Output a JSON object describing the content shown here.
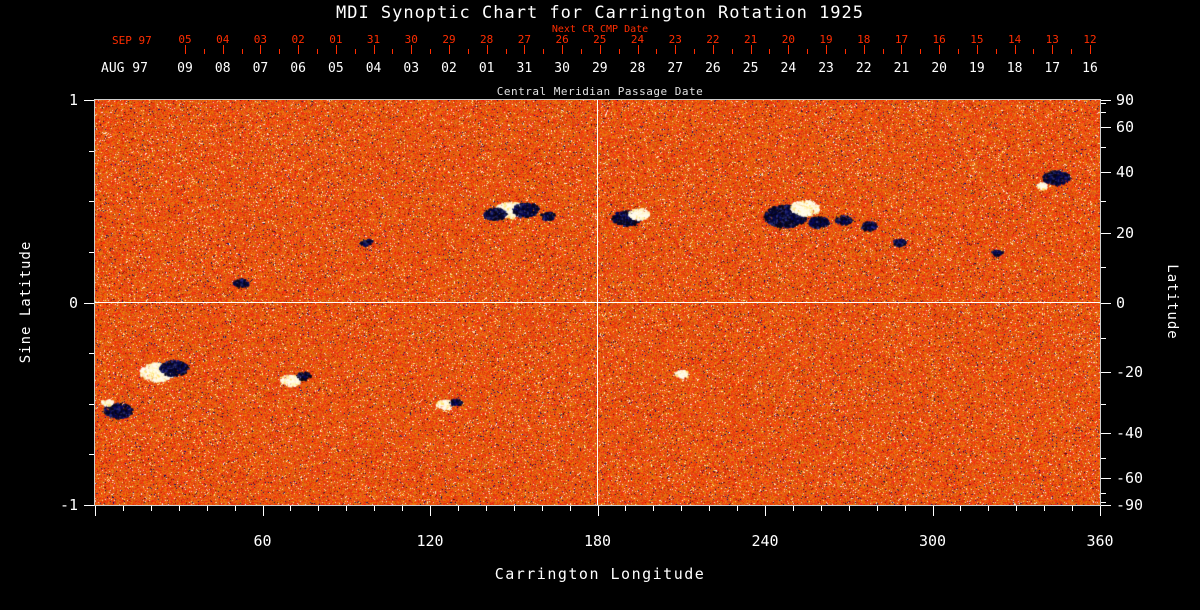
{
  "title": "MDI Synoptic Chart for Carrington Rotation 1925",
  "colors": {
    "background": "#000000",
    "title_text": "#ffffff",
    "red_accent": "#ff2d00",
    "white_axis": "#ffffff",
    "caption_text": "#e2e2e2",
    "map_base": "#e8521e",
    "negative_polarity": "#001a55",
    "positive_polarity": "#fff8e0"
  },
  "top_axis": {
    "next_cr_label": "Next CR CMP Date",
    "cmp_label": "Central Meridian Passage Date",
    "red_row": {
      "month_label": "SEP 97",
      "days": [
        "05",
        "04",
        "03",
        "02",
        "01",
        "31",
        "30",
        "29",
        "28",
        "27",
        "26",
        "25",
        "24",
        "23",
        "22",
        "21",
        "20",
        "19",
        "18",
        "17",
        "16",
        "15",
        "14",
        "13",
        "12"
      ]
    },
    "white_row": {
      "month_label": "AUG 97",
      "days": [
        "09",
        "08",
        "07",
        "06",
        "05",
        "04",
        "03",
        "02",
        "01",
        "31",
        "30",
        "29",
        "28",
        "27",
        "26",
        "25",
        "24",
        "23",
        "22",
        "21",
        "20",
        "19",
        "18",
        "17",
        "16"
      ]
    }
  },
  "left_axis": {
    "label": "Sine Latitude",
    "tick_labels": [
      "1",
      "0",
      "-1"
    ],
    "tick_values": [
      1,
      0,
      -1
    ],
    "minor_tick_values": [
      0.75,
      0.5,
      0.25,
      -0.25,
      -0.5,
      -0.75
    ]
  },
  "right_axis": {
    "label": "Latitude",
    "tick_labels": [
      "90",
      "60",
      "40",
      "20",
      "0",
      "-20",
      "-40",
      "-60",
      "-90"
    ],
    "tick_values": [
      90,
      60,
      40,
      20,
      0,
      -20,
      -40,
      -60,
      -90
    ],
    "minor_tick_values": [
      80,
      70,
      50,
      30,
      10,
      -10,
      -30,
      -50,
      -70,
      -80
    ]
  },
  "bottom_axis": {
    "label": "Carrington Longitude",
    "tick_labels": [
      "60",
      "120",
      "180",
      "240",
      "300",
      "360"
    ],
    "tick_values": [
      60,
      120,
      180,
      240,
      300,
      360
    ],
    "minor_step_deg": 10
  },
  "chart_data": {
    "type": "heatmap",
    "title": "MDI Synoptic Chart for Carrington Rotation 1925",
    "xlabel": "Carrington Longitude",
    "ylabel_left": "Sine Latitude",
    "ylabel_right": "Latitude",
    "xlim": [
      0,
      360
    ],
    "ylim_sine_latitude": [
      -1,
      1
    ],
    "grid": false,
    "reference_lines": {
      "horizontal_at_sine_latitude": 0,
      "vertical_at_longitude": 180
    },
    "description": "SOHO/MDI magnetic flux synoptic map: granular orange-red quiet-sun background with bipolar active regions (dark blue/black = negative polarity, white/yellow = positive polarity).",
    "active_regions": [
      {
        "lon": 148.5,
        "sin_lat": 0.46,
        "pol": "pos",
        "r_deg": 3.2
      },
      {
        "lon": 143.0,
        "sin_lat": 0.44,
        "pol": "neg",
        "r_deg": 2.4
      },
      {
        "lon": 154.0,
        "sin_lat": 0.46,
        "pol": "neg",
        "r_deg": 2.8
      },
      {
        "lon": 162.0,
        "sin_lat": 0.43,
        "pol": "neg",
        "r_deg": 1.6
      },
      {
        "lon": 190.0,
        "sin_lat": 0.42,
        "pol": "neg",
        "r_deg": 3.0
      },
      {
        "lon": 194.5,
        "sin_lat": 0.44,
        "pol": "pos",
        "r_deg": 2.2
      },
      {
        "lon": 247.0,
        "sin_lat": 0.43,
        "pol": "neg",
        "r_deg": 4.5
      },
      {
        "lon": 254.0,
        "sin_lat": 0.47,
        "pol": "pos",
        "r_deg": 3.0
      },
      {
        "lon": 259.0,
        "sin_lat": 0.4,
        "pol": "neg",
        "r_deg": 2.2
      },
      {
        "lon": 268.0,
        "sin_lat": 0.41,
        "pol": "neg",
        "r_deg": 1.8
      },
      {
        "lon": 277.0,
        "sin_lat": 0.38,
        "pol": "neg",
        "r_deg": 1.8
      },
      {
        "lon": 288.0,
        "sin_lat": 0.3,
        "pol": "neg",
        "r_deg": 1.4
      },
      {
        "lon": 344.0,
        "sin_lat": 0.62,
        "pol": "neg",
        "r_deg": 2.8
      },
      {
        "lon": 339.0,
        "sin_lat": 0.58,
        "pol": "pos",
        "r_deg": 1.2
      },
      {
        "lon": 22.0,
        "sin_lat": -0.34,
        "pol": "pos",
        "r_deg": 3.6
      },
      {
        "lon": 28.0,
        "sin_lat": -0.32,
        "pol": "neg",
        "r_deg": 3.0
      },
      {
        "lon": 8.0,
        "sin_lat": -0.53,
        "pol": "neg",
        "r_deg": 3.0
      },
      {
        "lon": 4.0,
        "sin_lat": -0.49,
        "pol": "pos",
        "r_deg": 1.2
      },
      {
        "lon": 70.0,
        "sin_lat": -0.38,
        "pol": "pos",
        "r_deg": 2.2
      },
      {
        "lon": 74.5,
        "sin_lat": -0.36,
        "pol": "neg",
        "r_deg": 1.5
      },
      {
        "lon": 52.0,
        "sin_lat": 0.1,
        "pol": "neg",
        "r_deg": 1.6
      },
      {
        "lon": 97.0,
        "sin_lat": 0.3,
        "pol": "neg",
        "r_deg": 1.3
      },
      {
        "lon": 125.0,
        "sin_lat": -0.5,
        "pol": "pos",
        "r_deg": 1.8
      },
      {
        "lon": 129.0,
        "sin_lat": -0.49,
        "pol": "neg",
        "r_deg": 1.3
      },
      {
        "lon": 210.0,
        "sin_lat": -0.35,
        "pol": "pos",
        "r_deg": 1.5
      },
      {
        "lon": 323.0,
        "sin_lat": 0.25,
        "pol": "neg",
        "r_deg": 1.2
      }
    ]
  }
}
